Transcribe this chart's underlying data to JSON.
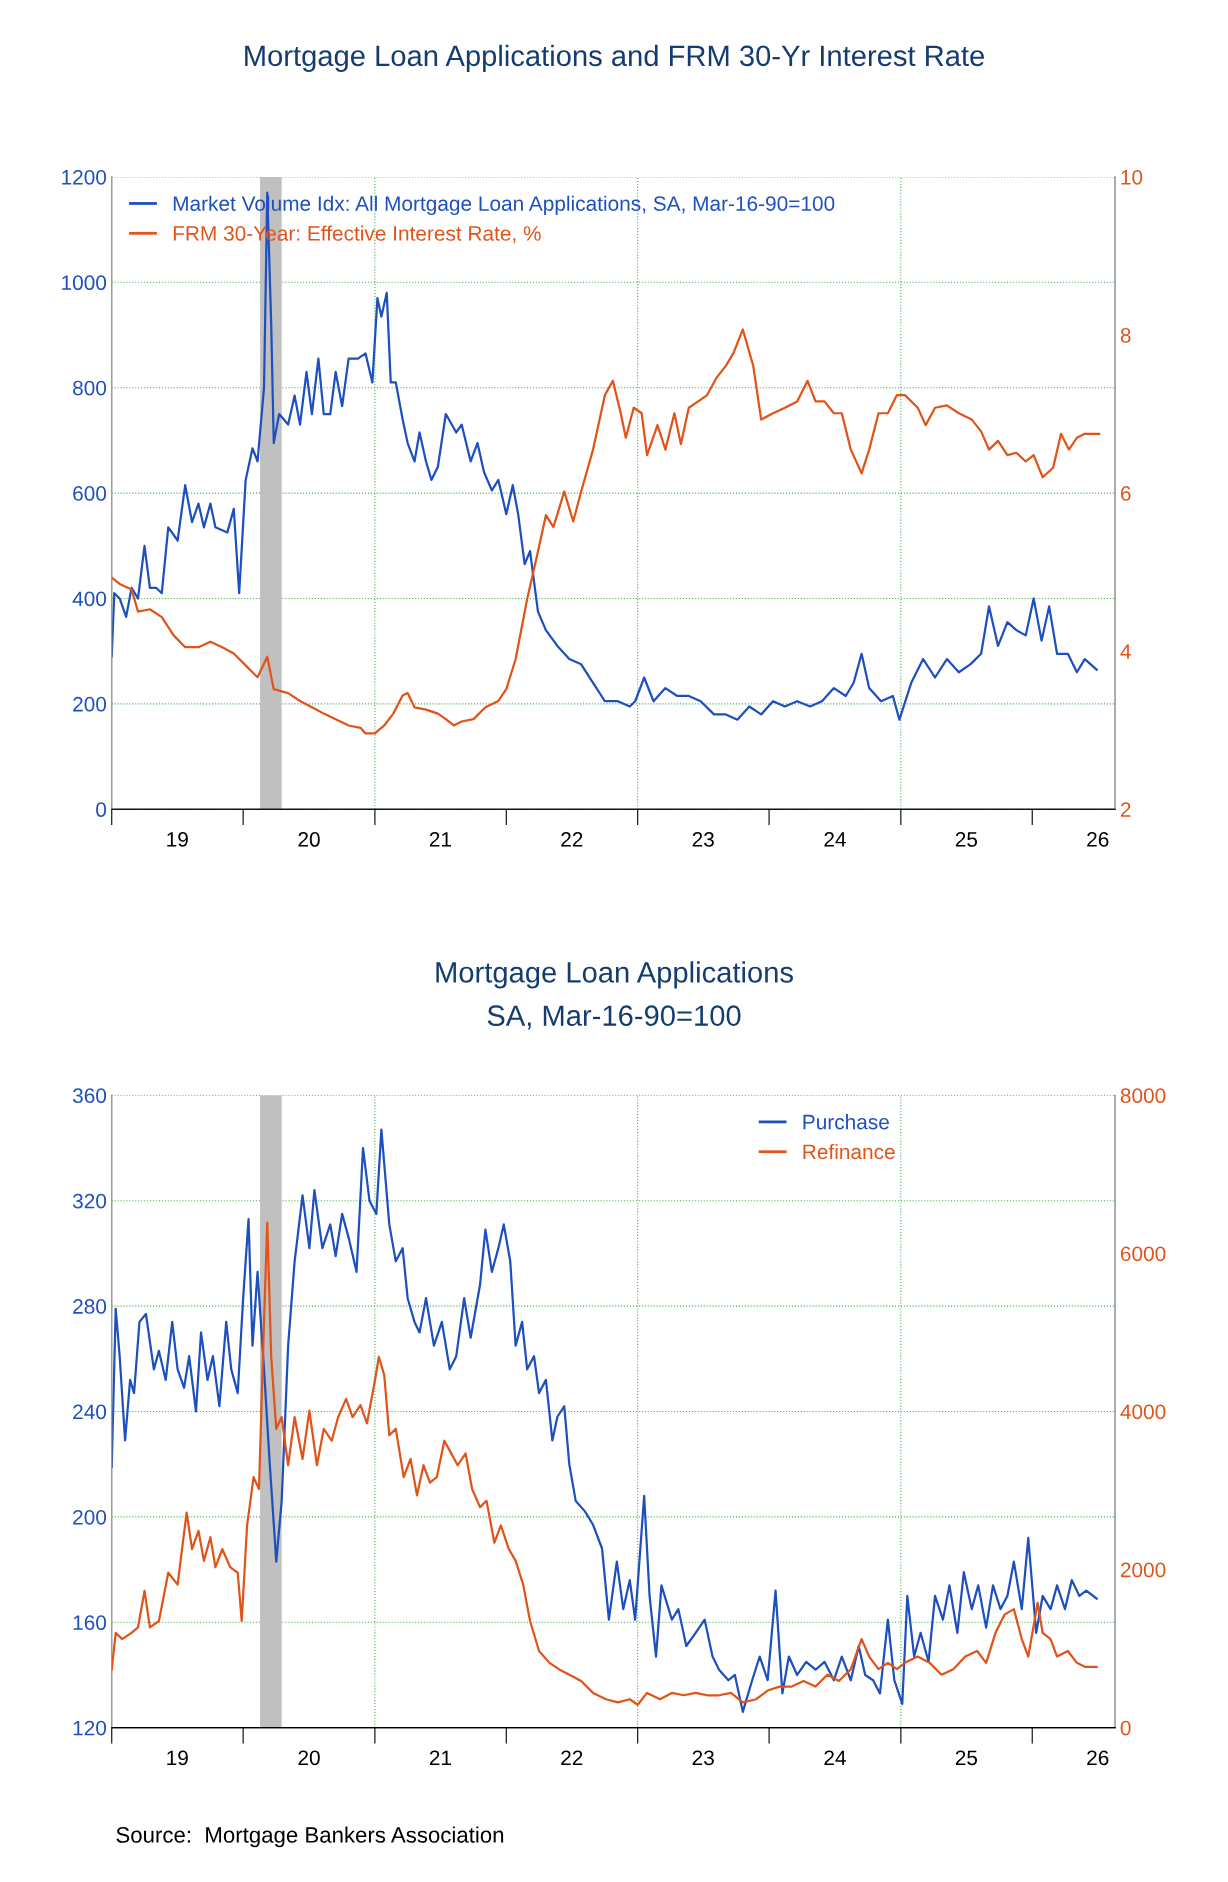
{
  "chart_data": [
    {
      "type": "line",
      "title": "Mortgage Loan Applications and FRM 30-Yr Interest Rate",
      "xlim": [
        "2019-01-01",
        "2026-08-19"
      ],
      "ylim": [
        0,
        1200
      ],
      "yticks": [
        0,
        200,
        400,
        600,
        800,
        1000,
        1200
      ],
      "y2lim": [
        2,
        10
      ],
      "y2ticks": [
        2,
        4,
        6,
        8,
        10
      ],
      "xticks": [
        {
          "value": "2019-01-01",
          "label": null
        },
        {
          "value": "2020-01-01",
          "label": null
        },
        {
          "value": "2021-01-01",
          "label": null
        },
        {
          "value": "2022-01-01",
          "label": null
        },
        {
          "value": "2023-01-01",
          "label": null
        },
        {
          "value": "2024-01-01",
          "label": null
        },
        {
          "value": "2025-01-01",
          "label": null
        },
        {
          "value": "2026-01-01",
          "label": null
        },
        {
          "value": "2019-07-02",
          "label": "19"
        },
        {
          "value": "2020-07-02",
          "label": "20"
        },
        {
          "value": "2021-07-02",
          "label": "21"
        },
        {
          "value": "2022-07-02",
          "label": "22"
        },
        {
          "value": "2023-07-02",
          "label": "23"
        },
        {
          "value": "2024-07-02",
          "label": "24"
        },
        {
          "value": "2025-07-02",
          "label": "25"
        },
        {
          "value": "2026-07-02",
          "label": "26"
        }
      ],
      "grid": "y",
      "legend": "top left",
      "bands": [
        {
          "axis": "x",
          "from": "2020-02-17",
          "to": "2020-04-17",
          "label": null,
          "color": "#c0c0c0"
        }
      ],
      "ref_lines": [
        {
          "axis": "x",
          "value": "2021-01-01",
          "label": null,
          "color": "#4caf50",
          "line_style": "dotted"
        },
        {
          "axis": "x",
          "value": "2023-01-01",
          "label": null,
          "color": "#4caf50",
          "line_style": "dotted"
        },
        {
          "axis": "x",
          "value": "2025-01-01",
          "label": null,
          "color": "#4caf50",
          "line_style": "dotted"
        }
      ],
      "series": [
        {
          "name": "Market Volume Idx: All Mortgage Loan Applications, SA, Mar-16-90=100",
          "color": "#1d4fbf",
          "axis": "y",
          "x": [
            "2019-01-01",
            "2019-01-08",
            "2019-01-23",
            "2019-02-10",
            "2019-02-25",
            "2019-03-15",
            "2019-04-02",
            "2019-04-17",
            "2019-05-05",
            "2019-05-20",
            "2019-06-07",
            "2019-07-03",
            "2019-07-24",
            "2019-08-12",
            "2019-08-30",
            "2019-09-14",
            "2019-10-02",
            "2019-10-16",
            "2019-11-18",
            "2019-12-06",
            "2019-12-21",
            "2020-01-08",
            "2020-01-27",
            "2020-02-10",
            "2020-02-28",
            "2020-03-08",
            "2020-03-19",
            "2020-03-26",
            "2020-04-10",
            "2020-05-05",
            "2020-05-23",
            "2020-06-07",
            "2020-06-25",
            "2020-07-10",
            "2020-07-28",
            "2020-08-12",
            "2020-08-30",
            "2020-09-14",
            "2020-10-02",
            "2020-10-20",
            "2020-11-15",
            "2020-12-06",
            "2020-12-25",
            "2021-01-08",
            "2021-01-19",
            "2021-02-03",
            "2021-02-14",
            "2021-02-28",
            "2021-03-19",
            "2021-04-02",
            "2021-04-21",
            "2021-05-05",
            "2021-05-23",
            "2021-06-07",
            "2021-06-25",
            "2021-07-17",
            "2021-08-15",
            "2021-08-30",
            "2021-09-24",
            "2021-10-13",
            "2021-10-31",
            "2021-11-22",
            "2021-12-10",
            "2022-01-01",
            "2022-01-19",
            "2022-02-03",
            "2022-02-21",
            "2022-03-08",
            "2022-03-30",
            "2022-04-21",
            "2022-05-23",
            "2022-06-25",
            "2022-07-28",
            "2022-08-30",
            "2022-10-02",
            "2022-11-07",
            "2022-12-10",
            "2022-12-25",
            "2023-01-19",
            "2023-02-14",
            "2023-03-19",
            "2023-04-21",
            "2023-05-23",
            "2023-06-25",
            "2023-08-01",
            "2023-09-03",
            "2023-10-05",
            "2023-11-07",
            "2023-12-10",
            "2024-01-12",
            "2024-02-14",
            "2024-03-19",
            "2024-04-24",
            "2024-05-27",
            "2024-06-29",
            "2024-08-01",
            "2024-08-23",
            "2024-09-14",
            "2024-10-05",
            "2024-11-07",
            "2024-12-10",
            "2024-12-28",
            "2025-01-30",
            "2025-03-04",
            "2025-04-06",
            "2025-05-09",
            "2025-06-11",
            "2025-07-13",
            "2025-08-12",
            "2025-09-03",
            "2025-09-28",
            "2025-10-24",
            "2025-11-18",
            "2025-12-14",
            "2026-01-05",
            "2026-01-27",
            "2026-02-17",
            "2026-03-11",
            "2026-04-10",
            "2026-05-05",
            "2026-05-27",
            "2026-06-29"
          ],
          "values": [
            290,
            410,
            400,
            365,
            420,
            400,
            500,
            420,
            420,
            410,
            535,
            510,
            615,
            545,
            580,
            535,
            580,
            535,
            525,
            570,
            410,
            625,
            685,
            660,
            800,
            1170,
            920,
            695,
            750,
            730,
            785,
            730,
            830,
            750,
            855,
            750,
            750,
            830,
            765,
            855,
            855,
            865,
            810,
            970,
            935,
            980,
            810,
            810,
            740,
            695,
            660,
            715,
            660,
            625,
            650,
            750,
            715,
            730,
            660,
            695,
            640,
            605,
            625,
            560,
            615,
            560,
            465,
            490,
            375,
            340,
            310,
            285,
            275,
            240,
            205,
            205,
            195,
            205,
            250,
            205,
            230,
            215,
            215,
            205,
            180,
            180,
            170,
            195,
            180,
            205,
            195,
            205,
            195,
            205,
            230,
            215,
            240,
            295,
            230,
            205,
            215,
            170,
            240,
            285,
            250,
            285,
            260,
            275,
            295,
            385,
            310,
            355,
            340,
            330,
            400,
            320,
            385,
            295,
            295,
            260,
            285,
            265
          ]
        },
        {
          "name": "FRM 30-Year: Effective Interest Rate, %",
          "color": "#e0541a",
          "axis": "y2",
          "x": [
            "2019-01-01",
            "2019-01-23",
            "2019-02-25",
            "2019-03-15",
            "2019-04-17",
            "2019-05-20",
            "2019-06-22",
            "2019-07-24",
            "2019-08-30",
            "2019-10-02",
            "2019-11-04",
            "2019-12-06",
            "2020-01-08",
            "2020-02-10",
            "2020-03-08",
            "2020-03-26",
            "2020-05-05",
            "2020-06-07",
            "2020-07-10",
            "2020-08-12",
            "2020-09-14",
            "2020-10-20",
            "2020-11-22",
            "2020-12-06",
            "2021-01-01",
            "2021-01-27",
            "2021-02-21",
            "2021-03-19",
            "2021-04-02",
            "2021-04-21",
            "2021-05-23",
            "2021-06-25",
            "2021-07-17",
            "2021-08-08",
            "2021-08-30",
            "2021-10-02",
            "2021-11-04",
            "2021-12-10",
            "2022-01-01",
            "2022-01-27",
            "2022-02-28",
            "2022-03-30",
            "2022-04-21",
            "2022-05-12",
            "2022-06-11",
            "2022-07-06",
            "2022-07-28",
            "2022-08-30",
            "2022-10-02",
            "2022-10-24",
            "2022-11-15",
            "2022-11-29",
            "2022-12-21",
            "2023-01-12",
            "2023-01-27",
            "2023-02-25",
            "2023-03-19",
            "2023-04-13",
            "2023-05-01",
            "2023-05-23",
            "2023-06-18",
            "2023-07-13",
            "2023-08-08",
            "2023-09-03",
            "2023-09-24",
            "2023-10-20",
            "2023-11-18",
            "2023-12-10",
            "2024-01-12",
            "2024-02-14",
            "2024-03-19",
            "2024-04-17",
            "2024-05-09",
            "2024-06-03",
            "2024-06-29",
            "2024-07-21",
            "2024-08-15",
            "2024-09-14",
            "2024-10-05",
            "2024-10-31",
            "2024-11-26",
            "2024-12-21",
            "2025-01-12",
            "2025-02-17",
            "2025-03-11",
            "2025-04-06",
            "2025-05-09",
            "2025-06-11",
            "2025-07-17",
            "2025-08-12",
            "2025-09-03",
            "2025-09-28",
            "2025-10-24",
            "2025-11-18",
            "2025-12-14",
            "2026-01-05",
            "2026-01-30",
            "2026-02-28",
            "2026-03-22",
            "2026-04-13",
            "2026-05-05",
            "2026-05-27",
            "2026-07-06"
          ],
          "values": [
            4.93,
            4.85,
            4.78,
            4.5,
            4.53,
            4.43,
            4.2,
            4.05,
            4.05,
            4.12,
            4.05,
            3.97,
            3.82,
            3.67,
            3.93,
            3.52,
            3.47,
            3.37,
            3.29,
            3.21,
            3.14,
            3.06,
            3.03,
            2.96,
            2.96,
            3.06,
            3.21,
            3.44,
            3.47,
            3.29,
            3.26,
            3.21,
            3.14,
            3.06,
            3.11,
            3.14,
            3.29,
            3.37,
            3.52,
            3.9,
            4.66,
            5.26,
            5.72,
            5.57,
            6.02,
            5.64,
            6.02,
            6.55,
            7.24,
            7.42,
            7.01,
            6.7,
            7.08,
            7.01,
            6.48,
            6.86,
            6.55,
            7.01,
            6.62,
            7.08,
            7.16,
            7.24,
            7.46,
            7.61,
            7.77,
            8.07,
            7.61,
            6.93,
            7.01,
            7.08,
            7.16,
            7.42,
            7.16,
            7.16,
            7.01,
            7.01,
            6.55,
            6.25,
            6.55,
            7.01,
            7.01,
            7.24,
            7.24,
            7.08,
            6.86,
            7.08,
            7.11,
            7.01,
            6.93,
            6.78,
            6.55,
            6.66,
            6.48,
            6.51,
            6.4,
            6.48,
            6.2,
            6.32,
            6.75,
            6.55,
            6.7,
            6.75,
            6.75
          ]
        }
      ]
    },
    {
      "type": "line",
      "title": "Mortgage Loan Applications",
      "subtitle": "SA, Mar-16-90=100",
      "annotations": [
        "Source:  Mortgage Bankers Association"
      ],
      "xlim": [
        "2019-01-01",
        "2026-08-19"
      ],
      "ylim": [
        120,
        360
      ],
      "yticks": [
        120,
        160,
        200,
        240,
        280,
        320,
        360
      ],
      "y2lim": [
        0,
        8000
      ],
      "y2ticks": [
        0,
        2000,
        4000,
        6000,
        8000
      ],
      "xticks": [
        {
          "value": "2019-01-01",
          "label": null
        },
        {
          "value": "2020-01-01",
          "label": null
        },
        {
          "value": "2021-01-01",
          "label": null
        },
        {
          "value": "2022-01-01",
          "label": null
        },
        {
          "value": "2023-01-01",
          "label": null
        },
        {
          "value": "2024-01-01",
          "label": null
        },
        {
          "value": "2025-01-01",
          "label": null
        },
        {
          "value": "2026-01-01",
          "label": null
        },
        {
          "value": "2019-07-02",
          "label": "19"
        },
        {
          "value": "2020-07-02",
          "label": "20"
        },
        {
          "value": "2021-07-02",
          "label": "21"
        },
        {
          "value": "2022-07-02",
          "label": "22"
        },
        {
          "value": "2023-07-02",
          "label": "23"
        },
        {
          "value": "2024-07-02",
          "label": "24"
        },
        {
          "value": "2025-07-02",
          "label": "25"
        },
        {
          "value": "2026-07-02",
          "label": "26"
        }
      ],
      "grid": "y",
      "legend": "top right",
      "bands": [
        {
          "axis": "x",
          "from": "2020-02-17",
          "to": "2020-04-17",
          "label": null,
          "color": "#c0c0c0"
        }
      ],
      "ref_lines": [
        {
          "axis": "x",
          "value": "2021-01-01",
          "label": null,
          "color": "#4caf50",
          "line_style": "dotted"
        },
        {
          "axis": "x",
          "value": "2023-01-01",
          "label": null,
          "color": "#4caf50",
          "line_style": "dotted"
        },
        {
          "axis": "x",
          "value": "2025-01-01",
          "label": null,
          "color": "#4caf50",
          "line_style": "dotted"
        }
      ],
      "series": [
        {
          "name": "Purchase",
          "color": "#1d4fbf",
          "axis": "y",
          "x": [
            "2019-01-01",
            "2019-01-12",
            "2019-01-23",
            "2019-02-07",
            "2019-02-21",
            "2019-03-04",
            "2019-03-19",
            "2019-04-06",
            "2019-04-28",
            "2019-05-12",
            "2019-05-31",
            "2019-06-18",
            "2019-07-03",
            "2019-07-21",
            "2019-08-04",
            "2019-08-23",
            "2019-09-06",
            "2019-09-24",
            "2019-10-09",
            "2019-10-27",
            "2019-11-15",
            "2019-11-29",
            "2019-12-17",
            "2020-01-01",
            "2020-01-16",
            "2020-01-27",
            "2020-02-10",
            "2020-02-28",
            "2020-03-15",
            "2020-04-02",
            "2020-04-17",
            "2020-05-05",
            "2020-05-23",
            "2020-06-14",
            "2020-07-03",
            "2020-07-17",
            "2020-08-08",
            "2020-08-30",
            "2020-09-14",
            "2020-10-02",
            "2020-10-20",
            "2020-11-11",
            "2020-11-29",
            "2020-12-17",
            "2021-01-05",
            "2021-01-19",
            "2021-02-10",
            "2021-02-28",
            "2021-03-19",
            "2021-04-02",
            "2021-04-21",
            "2021-05-05",
            "2021-05-23",
            "2021-06-14",
            "2021-07-06",
            "2021-07-28",
            "2021-08-15",
            "2021-09-06",
            "2021-09-24",
            "2021-10-20",
            "2021-11-04",
            "2021-11-22",
            "2021-12-10",
            "2021-12-25",
            "2022-01-12",
            "2022-01-27",
            "2022-02-14",
            "2022-02-28",
            "2022-03-19",
            "2022-04-02",
            "2022-04-21",
            "2022-05-09",
            "2022-05-23",
            "2022-06-11",
            "2022-06-25",
            "2022-07-13",
            "2022-08-08",
            "2022-08-30",
            "2022-09-24",
            "2022-10-13",
            "2022-11-04",
            "2022-11-22",
            "2022-12-10",
            "2022-12-25",
            "2023-01-19",
            "2023-02-03",
            "2023-02-21",
            "2023-03-08",
            "2023-04-06",
            "2023-04-24",
            "2023-05-16",
            "2023-06-11",
            "2023-07-06",
            "2023-07-28",
            "2023-08-15",
            "2023-09-10",
            "2023-09-28",
            "2023-10-20",
            "2023-11-15",
            "2023-12-06",
            "2023-12-28",
            "2024-01-19",
            "2024-02-07",
            "2024-02-25",
            "2024-03-19",
            "2024-04-13",
            "2024-05-09",
            "2024-06-03",
            "2024-06-29",
            "2024-07-21",
            "2024-08-15",
            "2024-09-06",
            "2024-09-24",
            "2024-10-16",
            "2024-11-04",
            "2024-11-26",
            "2024-12-14",
            "2025-01-05",
            "2025-01-19",
            "2025-02-07",
            "2025-02-25",
            "2025-03-19",
            "2025-04-06",
            "2025-04-28",
            "2025-05-16",
            "2025-06-07",
            "2025-06-25",
            "2025-07-17",
            "2025-08-04",
            "2025-08-26",
            "2025-09-14",
            "2025-10-05",
            "2025-10-24",
            "2025-11-11",
            "2025-12-03",
            "2025-12-21",
            "2026-01-12",
            "2026-01-30",
            "2026-02-21",
            "2026-03-11",
            "2026-04-02",
            "2026-04-21",
            "2026-05-12",
            "2026-05-31",
            "2026-06-29"
          ],
          "values": [
            219,
            279,
            261,
            229,
            252,
            247,
            274,
            277,
            256,
            263,
            252,
            274,
            256,
            249,
            261,
            240,
            270,
            252,
            261,
            242,
            274,
            256,
            247,
            283,
            313,
            265,
            293,
            256,
            220,
            183,
            206,
            265,
            297,
            322,
            302,
            324,
            302,
            311,
            299,
            315,
            306,
            293,
            340,
            320,
            315,
            347,
            311,
            297,
            302,
            283,
            274,
            270,
            283,
            265,
            274,
            256,
            261,
            283,
            268,
            288,
            309,
            293,
            302,
            311,
            297,
            265,
            274,
            256,
            261,
            247,
            252,
            229,
            238,
            242,
            220,
            206,
            202,
            197,
            188,
            161,
            183,
            165,
            176,
            161,
            208,
            170,
            147,
            174,
            161,
            165,
            151,
            156,
            161,
            147,
            142,
            138,
            140,
            126,
            138,
            147,
            138,
            172,
            133,
            147,
            140,
            145,
            142,
            145,
            138,
            147,
            138,
            151,
            140,
            138,
            133,
            161,
            138,
            129,
            170,
            147,
            156,
            145,
            170,
            161,
            174,
            156,
            179,
            165,
            174,
            158,
            174,
            165,
            170,
            183,
            165,
            192,
            156,
            170,
            165,
            174,
            165,
            176,
            170,
            172,
            169
          ]
        },
        {
          "name": "Refinance",
          "color": "#e0541a",
          "axis": "y2",
          "x": [
            "2019-01-01",
            "2019-01-12",
            "2019-01-30",
            "2019-02-25",
            "2019-03-15",
            "2019-04-02",
            "2019-04-17",
            "2019-05-12",
            "2019-06-07",
            "2019-07-03",
            "2019-07-28",
            "2019-08-12",
            "2019-08-30",
            "2019-09-14",
            "2019-10-02",
            "2019-10-16",
            "2019-11-04",
            "2019-11-26",
            "2019-12-17",
            "2019-12-28",
            "2020-01-12",
            "2020-01-30",
            "2020-02-14",
            "2020-02-28",
            "2020-03-08",
            "2020-03-19",
            "2020-04-02",
            "2020-04-17",
            "2020-05-05",
            "2020-05-23",
            "2020-06-14",
            "2020-07-03",
            "2020-07-24",
            "2020-08-12",
            "2020-09-03",
            "2020-09-21",
            "2020-10-13",
            "2020-10-31",
            "2020-11-22",
            "2020-12-10",
            "2021-01-01",
            "2021-01-12",
            "2021-01-27",
            "2021-02-10",
            "2021-02-28",
            "2021-03-22",
            "2021-04-10",
            "2021-04-28",
            "2021-05-16",
            "2021-06-03",
            "2021-06-22",
            "2021-07-13",
            "2021-08-01",
            "2021-08-19",
            "2021-09-10",
            "2021-09-28",
            "2021-10-20",
            "2021-11-07",
            "2021-11-29",
            "2021-12-17",
            "2022-01-08",
            "2022-01-27",
            "2022-02-17",
            "2022-03-08",
            "2022-04-02",
            "2022-05-01",
            "2022-05-27",
            "2022-06-25",
            "2022-07-28",
            "2022-08-30",
            "2022-10-05",
            "2022-11-07",
            "2022-12-10",
            "2023-01-01",
            "2023-01-27",
            "2023-03-04",
            "2023-04-06",
            "2023-05-09",
            "2023-06-11",
            "2023-07-13",
            "2023-08-15",
            "2023-09-17",
            "2023-10-20",
            "2023-11-26",
            "2023-12-28",
            "2024-01-30",
            "2024-03-04",
            "2024-04-06",
            "2024-05-09",
            "2024-06-11",
            "2024-07-13",
            "2024-08-15",
            "2024-09-14",
            "2024-10-05",
            "2024-10-31",
            "2024-11-26",
            "2024-12-21",
            "2025-01-12",
            "2025-02-17",
            "2025-03-22",
            "2025-04-24",
            "2025-05-27",
            "2025-06-29",
            "2025-08-01",
            "2025-08-26",
            "2025-09-21",
            "2025-10-16",
            "2025-11-11",
            "2025-12-03",
            "2025-12-21",
            "2026-01-16",
            "2026-01-30",
            "2026-02-21",
            "2026-03-11",
            "2026-04-10",
            "2026-05-05",
            "2026-05-27",
            "2026-06-29"
          ],
          "values": [
            740,
            1200,
            1120,
            1200,
            1270,
            1730,
            1270,
            1350,
            1960,
            1810,
            2720,
            2260,
            2490,
            2110,
            2410,
            2030,
            2260,
            2030,
            1960,
            1350,
            2560,
            3170,
            3020,
            5140,
            6390,
            4690,
            3780,
            3930,
            3320,
            3930,
            3400,
            4010,
            3320,
            3780,
            3630,
            3930,
            4160,
            3930,
            4080,
            3850,
            4390,
            4690,
            4460,
            3700,
            3780,
            3170,
            3400,
            2940,
            3320,
            3100,
            3170,
            3630,
            3470,
            3320,
            3470,
            3020,
            2790,
            2870,
            2340,
            2560,
            2260,
            2110,
            1810,
            1350,
            970,
            820,
            740,
            670,
            590,
            440,
            360,
            320,
            360,
            290,
            440,
            360,
            440,
            410,
            440,
            410,
            410,
            440,
            320,
            360,
            470,
            520,
            520,
            590,
            520,
            670,
            590,
            740,
            1120,
            900,
            740,
            820,
            740,
            820,
            900,
            820,
            670,
            740,
            900,
            970,
            820,
            1200,
            1430,
            1500,
            1120,
            900,
            1580,
            1200,
            1120,
            900,
            970,
            820,
            770,
            770
          ]
        }
      ]
    }
  ]
}
